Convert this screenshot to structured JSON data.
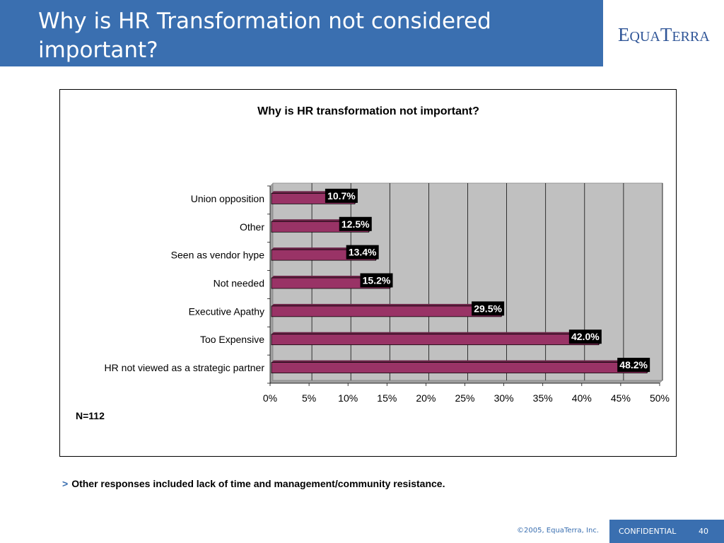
{
  "slide": {
    "title": "Why is HR Transformation not considered important?",
    "logo_text": "EQUATERRA",
    "note_bullet": ">",
    "note": "Other responses included lack of time and management/community resistance.",
    "footer_copyright": "©2005, EquaTerra, Inc.",
    "footer_label": "CONFIDENTIAL",
    "page_number": "40"
  },
  "colors": {
    "title_bar": "#3a6fb0",
    "bar_fill": "#993366",
    "plot_bg": "#c0c0c0",
    "label_bg": "#000000",
    "label_text": "#ffffff"
  },
  "chart_data": {
    "type": "bar",
    "orientation": "horizontal",
    "title": "Why is HR transformation not important?",
    "categories": [
      "Union opposition",
      "Other",
      "Seen as vendor hype",
      "Not needed",
      "Executive Apathy",
      "Too Expensive",
      "HR not viewed as a strategic partner"
    ],
    "values": [
      10.7,
      12.5,
      13.4,
      15.2,
      29.5,
      42.0,
      48.2
    ],
    "value_labels": [
      "10.7%",
      "12.5%",
      "13.4%",
      "15.2%",
      "29.5%",
      "42.0%",
      "48.2%"
    ],
    "x_ticks": [
      "0%",
      "5%",
      "10%",
      "15%",
      "20%",
      "25%",
      "30%",
      "35%",
      "40%",
      "45%",
      "50%"
    ],
    "xlim": [
      0,
      50
    ],
    "grid": true,
    "annotation": "N=112"
  }
}
